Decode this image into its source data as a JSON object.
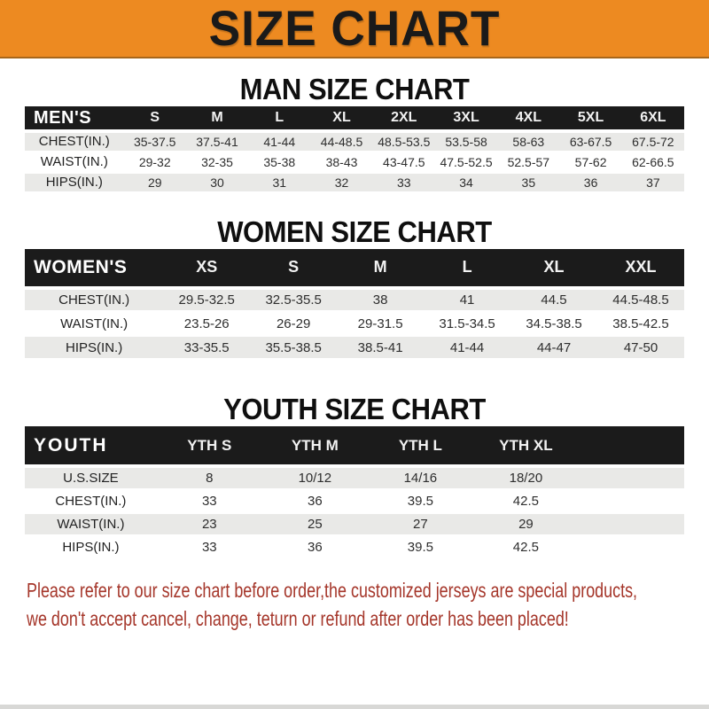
{
  "banner": {
    "title": "SIZE CHART"
  },
  "sections": [
    {
      "heading": "MAN SIZE CHART",
      "header_label": "MEN'S",
      "columns": [
        "S",
        "M",
        "L",
        "XL",
        "2XL",
        "3XL",
        "4XL",
        "5XL",
        "6XL"
      ],
      "trailing_empty_column": false,
      "rows": [
        {
          "label": "CHEST(IN.)",
          "values": [
            "35-37.5",
            "37.5-41",
            "41-44",
            "44-48.5",
            "48.5-53.5",
            "53.5-58",
            "58-63",
            "63-67.5",
            "67.5-72"
          ]
        },
        {
          "label": "WAIST(IN.)",
          "values": [
            "29-32",
            "32-35",
            "35-38",
            "38-43",
            "43-47.5",
            "47.5-52.5",
            "52.5-57",
            "57-62",
            "62-66.5"
          ]
        },
        {
          "label": "HIPS(IN.)",
          "values": [
            "29",
            "30",
            "31",
            "32",
            "33",
            "34",
            "35",
            "36",
            "37"
          ]
        }
      ]
    },
    {
      "heading": "WOMEN SIZE CHART",
      "header_label": "WOMEN'S",
      "columns": [
        "XS",
        "S",
        "M",
        "L",
        "XL",
        "XXL"
      ],
      "trailing_empty_column": false,
      "rows": [
        {
          "label": "CHEST(IN.)",
          "values": [
            "29.5-32.5",
            "32.5-35.5",
            "38",
            "41",
            "44.5",
            "44.5-48.5"
          ]
        },
        {
          "label": "WAIST(IN.)",
          "values": [
            "23.5-26",
            "26-29",
            "29-31.5",
            "31.5-34.5",
            "34.5-38.5",
            "38.5-42.5"
          ]
        },
        {
          "label": "HIPS(IN.)",
          "values": [
            "33-35.5",
            "35.5-38.5",
            "38.5-41",
            "41-44",
            "44-47",
            "47-50"
          ]
        }
      ]
    },
    {
      "heading": "YOUTH SIZE CHART",
      "header_label": "YOUTH",
      "columns": [
        "YTH S",
        "YTH M",
        "YTH L",
        "YTH XL"
      ],
      "trailing_empty_column": true,
      "rows": [
        {
          "label": "U.S.SIZE",
          "values": [
            "8",
            "10/12",
            "14/16",
            "18/20"
          ]
        },
        {
          "label": "CHEST(IN.)",
          "values": [
            "33",
            "36",
            "39.5",
            "42.5"
          ]
        },
        {
          "label": "WAIST(IN.)",
          "values": [
            "23",
            "25",
            "27",
            "29"
          ]
        },
        {
          "label": "HIPS(IN.)",
          "values": [
            "33",
            "36",
            "39.5",
            "42.5"
          ]
        }
      ]
    }
  ],
  "footer": {
    "line1": "Please refer to our size chart before order,the customized jerseys are special products,",
    "line2": "we don't accept cancel, change, teturn or refund after order has been placed!"
  },
  "colors": {
    "banner_orange": "#ED8A21",
    "header_bar_black": "#1B1B1B",
    "row_stripe_gray": "#E9E9E7",
    "footer_red": "#A5362A"
  }
}
